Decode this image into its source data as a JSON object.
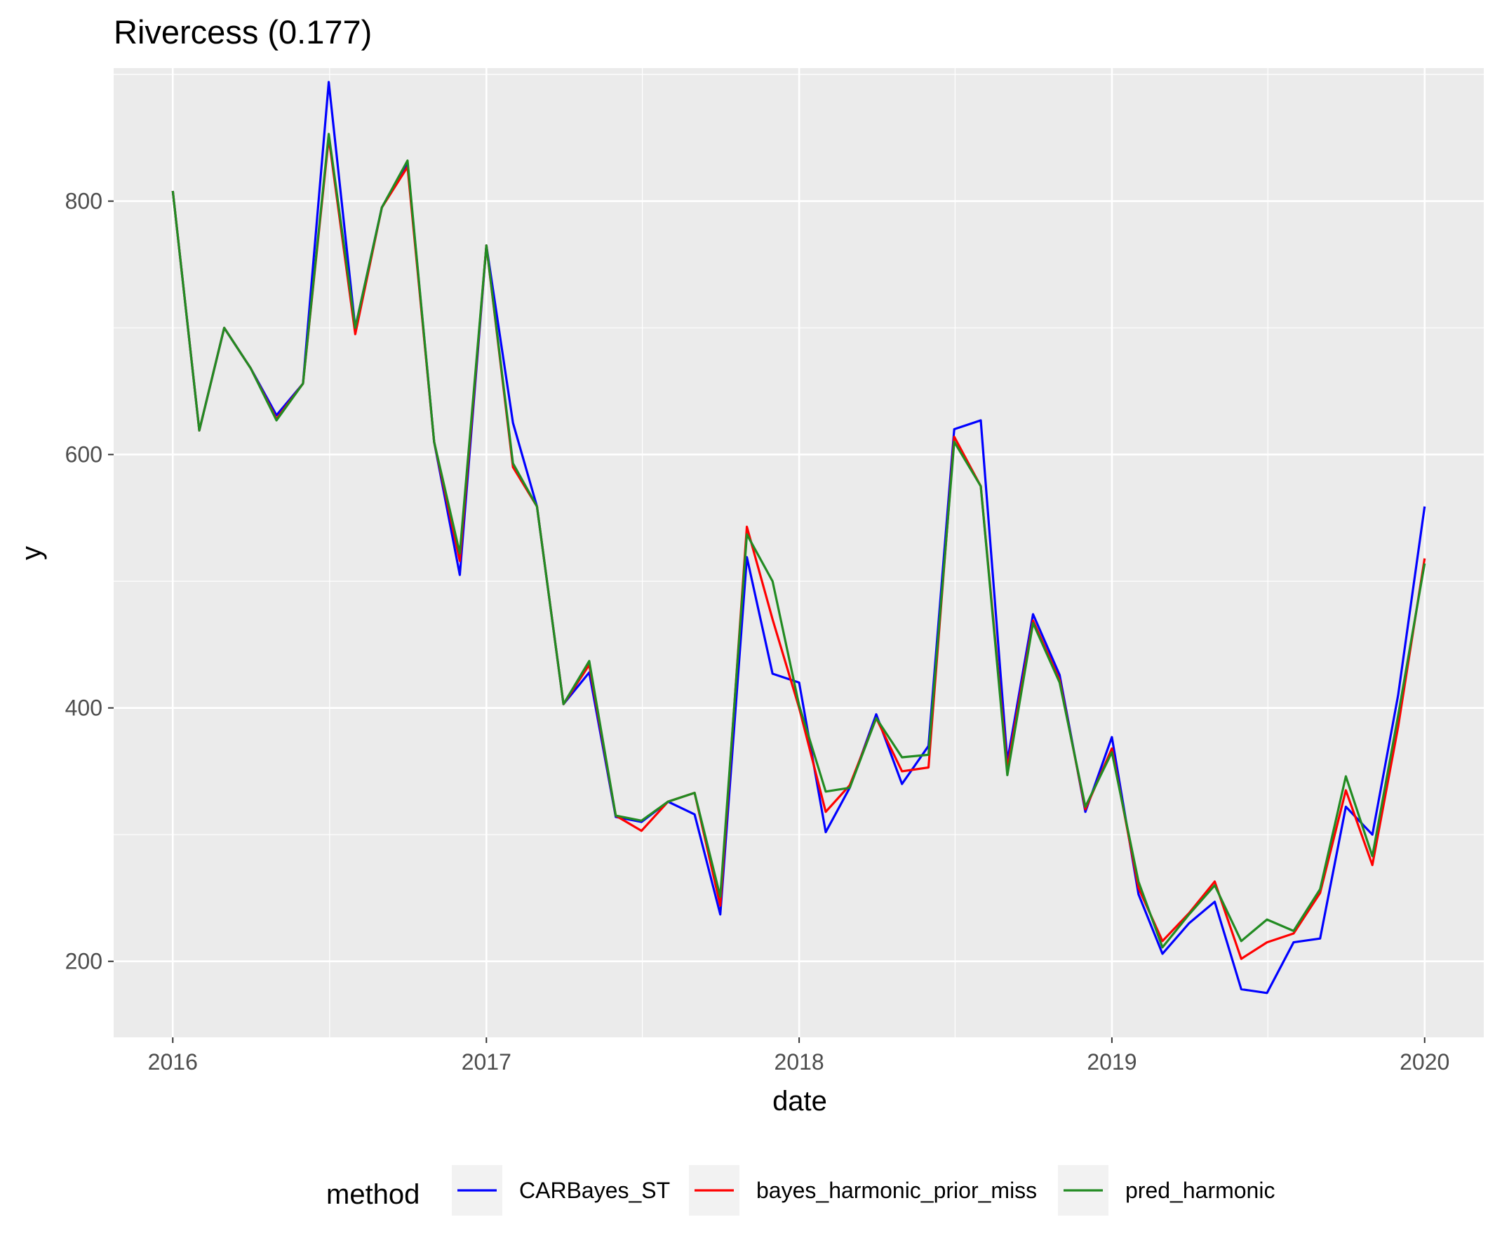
{
  "chart_data": {
    "type": "line",
    "title": "Rivercess (0.177)",
    "xlabel": "date",
    "ylabel": "y",
    "xlim": [
      "2015-10-24",
      "2020-03-10"
    ],
    "ylim": [
      140,
      905
    ],
    "x_ticks": [
      "2016",
      "2017",
      "2018",
      "2019",
      "2020"
    ],
    "y_ticks": [
      200,
      400,
      600,
      800
    ],
    "grid": true,
    "legend": {
      "title": "method",
      "position": "bottom"
    },
    "x": [
      "2016-01-01",
      "2016-02-01",
      "2016-03-01",
      "2016-04-01",
      "2016-05-01",
      "2016-06-01",
      "2016-07-01",
      "2016-08-01",
      "2016-09-01",
      "2016-10-01",
      "2016-11-01",
      "2016-12-01",
      "2017-01-01",
      "2017-02-01",
      "2017-03-01",
      "2017-04-01",
      "2017-05-01",
      "2017-06-01",
      "2017-07-01",
      "2017-08-01",
      "2017-09-01",
      "2017-10-01",
      "2017-11-01",
      "2017-12-01",
      "2018-01-01",
      "2018-02-01",
      "2018-03-01",
      "2018-04-01",
      "2018-05-01",
      "2018-06-01",
      "2018-07-01",
      "2018-08-01",
      "2018-09-01",
      "2018-10-01",
      "2018-11-01",
      "2018-12-01",
      "2019-01-01",
      "2019-02-01",
      "2019-03-01",
      "2019-04-01",
      "2019-05-01",
      "2019-06-01",
      "2019-07-01",
      "2019-08-01",
      "2019-09-01",
      "2019-10-01",
      "2019-11-01",
      "2019-12-01",
      "2020-01-01"
    ],
    "series": [
      {
        "name": "CARBayes_ST",
        "color": "#0000FF",
        "values": [
          808,
          619,
          700,
          668,
          631,
          656,
          894,
          700,
          795,
          830,
          610,
          505,
          765,
          625,
          559,
          403,
          428,
          314,
          310,
          326,
          316,
          237,
          519,
          427,
          420,
          302,
          337,
          395,
          340,
          370,
          620,
          627,
          358,
          474,
          426,
          318,
          377,
          253,
          206,
          230,
          247,
          178,
          175,
          215,
          218,
          322,
          300,
          410,
          559
        ]
      },
      {
        "name": "bayes_harmonic_prior_miss",
        "color": "#FF0000",
        "values": [
          808,
          619,
          700,
          668,
          628,
          656,
          850,
          695,
          795,
          827,
          610,
          516,
          765,
          590,
          559,
          403,
          434,
          315,
          303,
          326,
          333,
          244,
          543,
          470,
          400,
          318,
          339,
          392,
          350,
          353,
          614,
          575,
          352,
          469,
          422,
          320,
          368,
          258,
          216,
          238,
          263,
          202,
          215,
          222,
          254,
          335,
          276,
          385,
          518
        ]
      },
      {
        "name": "pred_harmonic",
        "color": "#228B22",
        "values": [
          808,
          619,
          700,
          668,
          627,
          656,
          853,
          700,
          795,
          832,
          610,
          522,
          765,
          593,
          559,
          403,
          437,
          315,
          311,
          326,
          333,
          251,
          537,
          500,
          402,
          334,
          337,
          392,
          361,
          363,
          610,
          575,
          347,
          467,
          420,
          322,
          365,
          263,
          211,
          237,
          260,
          216,
          233,
          224,
          257,
          346,
          283,
          394,
          514
        ]
      }
    ]
  }
}
